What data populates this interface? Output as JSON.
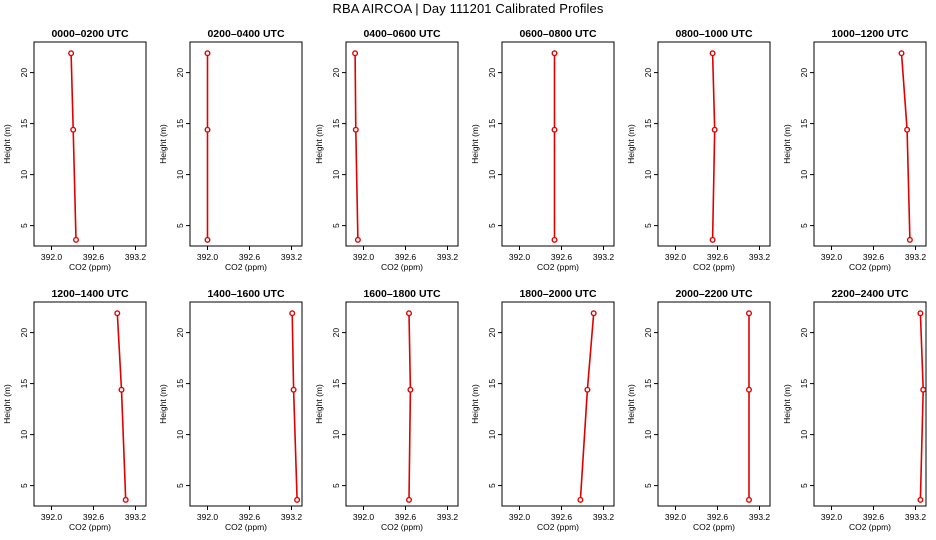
{
  "title": "RBA AIRCOA |  Day 111201  Calibrated Profiles",
  "chart_data": [
    {
      "type": "line",
      "title": "0000–0200 UTC",
      "xlabel": "CO2 (ppm)",
      "ylabel": "Height (m)",
      "xlim": [
        391.75,
        393.35
      ],
      "ylim": [
        3,
        23
      ],
      "xticks": [
        "392.0",
        "392.6",
        "393.2"
      ],
      "yticks": [
        "5",
        "10",
        "15",
        "20"
      ],
      "color": "#e00000",
      "series": [
        {
          "x": [
            392.35,
            392.31,
            392.28
          ],
          "y": [
            3.6,
            14.4,
            21.9
          ]
        }
      ]
    },
    {
      "type": "line",
      "title": "0200–0400 UTC",
      "xlabel": "CO2 (ppm)",
      "ylabel": "Height (m)",
      "xlim": [
        391.75,
        393.35
      ],
      "ylim": [
        3,
        23
      ],
      "xticks": [
        "392.0",
        "392.6",
        "393.2"
      ],
      "yticks": [
        "5",
        "10",
        "15",
        "20"
      ],
      "color": "#e00000",
      "series": [
        {
          "x": [
            392.0,
            392.0,
            392.0
          ],
          "y": [
            3.6,
            14.4,
            21.9
          ]
        }
      ]
    },
    {
      "type": "line",
      "title": "0400–0600 UTC",
      "xlabel": "CO2 (ppm)",
      "ylabel": "Height (m)",
      "xlim": [
        391.75,
        393.35
      ],
      "ylim": [
        3,
        23
      ],
      "xticks": [
        "392.0",
        "392.6",
        "393.2"
      ],
      "yticks": [
        "5",
        "10",
        "15",
        "20"
      ],
      "color": "#e00000",
      "series": [
        {
          "x": [
            391.92,
            391.89,
            391.88
          ],
          "y": [
            3.6,
            14.4,
            21.9
          ]
        }
      ]
    },
    {
      "type": "line",
      "title": "0600–0800 UTC",
      "xlabel": "CO2 (ppm)",
      "ylabel": "Height (m)",
      "xlim": [
        391.75,
        393.35
      ],
      "ylim": [
        3,
        23
      ],
      "xticks": [
        "392.0",
        "392.6",
        "393.2"
      ],
      "yticks": [
        "5",
        "10",
        "15",
        "20"
      ],
      "color": "#e00000",
      "series": [
        {
          "x": [
            392.5,
            392.5,
            392.5
          ],
          "y": [
            3.6,
            14.4,
            21.9
          ]
        }
      ]
    },
    {
      "type": "line",
      "title": "0800–1000 UTC",
      "xlabel": "CO2 (ppm)",
      "ylabel": "Height (m)",
      "xlim": [
        391.75,
        393.35
      ],
      "ylim": [
        3,
        23
      ],
      "xticks": [
        "392.0",
        "392.6",
        "393.2"
      ],
      "yticks": [
        "5",
        "10",
        "15",
        "20"
      ],
      "color": "#e00000",
      "series": [
        {
          "x": [
            392.53,
            392.56,
            392.53
          ],
          "y": [
            3.6,
            14.4,
            21.9
          ]
        }
      ]
    },
    {
      "type": "line",
      "title": "1000–1200 UTC",
      "xlabel": "CO2 (ppm)",
      "ylabel": "Height (m)",
      "xlim": [
        391.75,
        393.35
      ],
      "ylim": [
        3,
        23
      ],
      "xticks": [
        "392.0",
        "392.6",
        "393.2"
      ],
      "yticks": [
        "5",
        "10",
        "15",
        "20"
      ],
      "color": "#e00000",
      "series": [
        {
          "x": [
            393.12,
            393.08,
            393.0
          ],
          "y": [
            3.6,
            14.4,
            21.9
          ]
        }
      ]
    },
    {
      "type": "line",
      "title": "1200–1400 UTC",
      "xlabel": "CO2 (ppm)",
      "ylabel": "Height (m)",
      "xlim": [
        391.75,
        393.35
      ],
      "ylim": [
        3,
        23
      ],
      "xticks": [
        "392.0",
        "392.6",
        "393.2"
      ],
      "yticks": [
        "5",
        "10",
        "15",
        "20"
      ],
      "color": "#e00000",
      "series": [
        {
          "x": [
            393.06,
            393.0,
            392.94
          ],
          "y": [
            3.6,
            14.4,
            21.9
          ]
        }
      ]
    },
    {
      "type": "line",
      "title": "1400–1600 UTC",
      "xlabel": "CO2 (ppm)",
      "ylabel": "Height (m)",
      "xlim": [
        391.75,
        393.35
      ],
      "ylim": [
        3,
        23
      ],
      "xticks": [
        "392.0",
        "392.6",
        "393.2"
      ],
      "yticks": [
        "5",
        "10",
        "15",
        "20"
      ],
      "color": "#e00000",
      "series": [
        {
          "x": [
            393.28,
            393.23,
            393.21
          ],
          "y": [
            3.6,
            14.4,
            21.9
          ]
        }
      ]
    },
    {
      "type": "line",
      "title": "1600–1800 UTC",
      "xlabel": "CO2 (ppm)",
      "ylabel": "Height (m)",
      "xlim": [
        391.75,
        393.35
      ],
      "ylim": [
        3,
        23
      ],
      "xticks": [
        "392.0",
        "392.6",
        "393.2"
      ],
      "yticks": [
        "5",
        "10",
        "15",
        "20"
      ],
      "color": "#e00000",
      "series": [
        {
          "x": [
            392.65,
            392.67,
            392.65
          ],
          "y": [
            3.6,
            14.4,
            21.9
          ]
        }
      ]
    },
    {
      "type": "line",
      "title": "1800–2000 UTC",
      "xlabel": "CO2 (ppm)",
      "ylabel": "Height (m)",
      "xlim": [
        391.75,
        393.35
      ],
      "ylim": [
        3,
        23
      ],
      "xticks": [
        "392.0",
        "392.6",
        "393.2"
      ],
      "yticks": [
        "5",
        "10",
        "15",
        "20"
      ],
      "color": "#e00000",
      "series": [
        {
          "x": [
            392.87,
            392.97,
            393.06
          ],
          "y": [
            3.6,
            14.4,
            21.9
          ]
        }
      ]
    },
    {
      "type": "line",
      "title": "2000–2200 UTC",
      "xlabel": "CO2 (ppm)",
      "ylabel": "Height (m)",
      "xlim": [
        391.75,
        393.35
      ],
      "ylim": [
        3,
        23
      ],
      "xticks": [
        "392.0",
        "392.6",
        "393.2"
      ],
      "yticks": [
        "5",
        "10",
        "15",
        "20"
      ],
      "color": "#e00000",
      "series": [
        {
          "x": [
            393.05,
            393.05,
            393.05
          ],
          "y": [
            3.6,
            14.4,
            21.9
          ]
        }
      ]
    },
    {
      "type": "line",
      "title": "2200–2400 UTC",
      "xlabel": "CO2 (ppm)",
      "ylabel": "Height (m)",
      "xlim": [
        391.75,
        393.35
      ],
      "ylim": [
        3,
        23
      ],
      "xticks": [
        "392.0",
        "392.6",
        "393.2"
      ],
      "yticks": [
        "5",
        "10",
        "15",
        "20"
      ],
      "color": "#e00000",
      "series": [
        {
          "x": [
            393.27,
            393.31,
            393.27
          ],
          "y": [
            3.6,
            14.4,
            21.9
          ]
        }
      ]
    }
  ]
}
